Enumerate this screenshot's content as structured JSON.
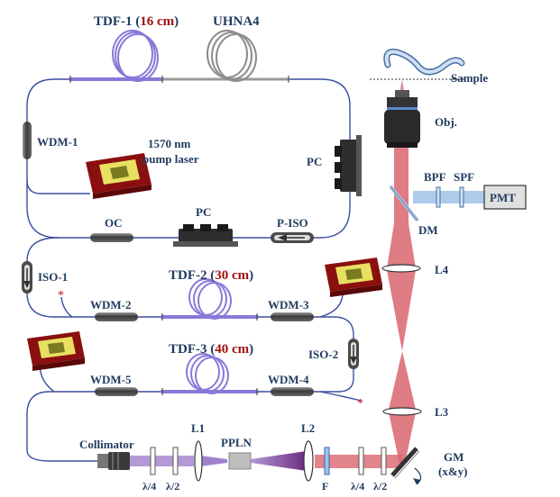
{
  "labels": {
    "tdf1": "TDF-1 (",
    "tdf1_len": "16 cm",
    "tdf1_close": ")",
    "uhna4": "UHNA4",
    "sample": "Sample",
    "obj": "Obj.",
    "wdm1": "WDM-1",
    "pump_l1": "1570 nm",
    "pump_l2": "pump laser",
    "pc_top": "PC",
    "bpf": "BPF",
    "spf": "SPF",
    "pmt": "PMT",
    "dm": "DM",
    "oc": "OC",
    "pc_mid": "PC",
    "piso": "P-ISO",
    "l4": "L4",
    "iso1": "ISO-1",
    "tdf2": "TDF-2 (",
    "tdf2_len": "30 cm",
    "tdf2_close": ")",
    "wdm2": "WDM-2",
    "wdm3": "WDM-3",
    "tdf3": "TDF-3 (",
    "tdf3_len": "40 cm",
    "tdf3_close": ")",
    "iso2": "ISO-2",
    "wdm5": "WDM-5",
    "wdm4": "WDM-4",
    "l3": "L3",
    "collimator": "Collimator",
    "l1": "L1",
    "ppln": "PPLN",
    "l2": "L2",
    "gm": "GM",
    "gm_xy": "(x&y)",
    "qwp1": "λ/4",
    "hwp1": "λ/2",
    "f": "F",
    "qwp2": "λ/4",
    "hwp2": "λ/2"
  },
  "colors": {
    "fiber": "#3a4fa0",
    "gain_fiber": "#8a78d8",
    "beam_red": "#d9656f",
    "beam_purple": "#7a3a8a",
    "label": "#1f3a5f",
    "label_red": "#a01010"
  }
}
